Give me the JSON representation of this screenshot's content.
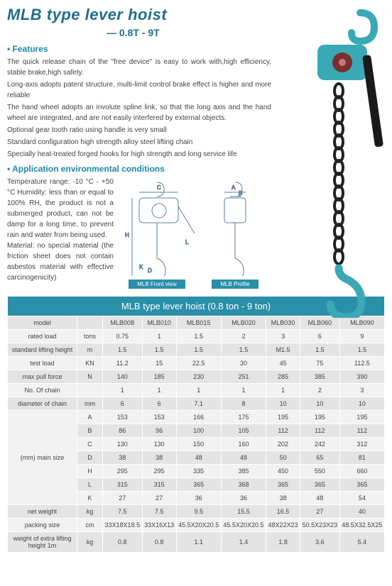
{
  "header": {
    "title": "MLB type lever hoist",
    "subtitle": "— 0.8T - 9T"
  },
  "features": {
    "heading": "• Features",
    "items": [
      "The quick release chain of the \"free device\" is easy to work with,high efficiency, stable brake,high safety.",
      "Long-axis adopts patent structure, multi-limit control brake effect is higher and more reliable",
      "The hand wheel adopts an involute spline link, so that the long axis and the hand wheel are integrated, and are not easily interfered by external objects.",
      "Optional gear tooth ratio using handle is very small",
      "Standard configuration high strength alloy steel lifting chain",
      "Specially heat-treated forged hooks for high strength and long service life"
    ]
  },
  "application": {
    "heading": "• Application environmental conditions",
    "text": "Temperature range: -10 °C - +50 °C Humidity: less than or equal to 100% RH, the product is not a submerged product, can not be damp for a long time, to prevent rain and water from being used.\nMaterial: no special material (the friction sheet does not contain asbestos material with effective carcinogenicity)"
  },
  "diagrams": {
    "front_caption": "MLB Front view",
    "profile_caption": "MLB Profile"
  },
  "hero": {
    "body_color": "#3aa9b5",
    "chain_color": "#222222",
    "handle_color": "#1a1a1a"
  },
  "table": {
    "title": "MLB type lever hoist (0.8 ton - 9 ton)",
    "header_bg": "#2a8fa8",
    "row_alt_bg": "#e4e4e4",
    "row_bg": "#f2f2f2",
    "columns": [
      "model",
      "",
      "MLB008",
      "MLB010",
      "MLB015",
      "MLB020",
      "MLB030",
      "MLB060",
      "MLB090"
    ],
    "rows": [
      {
        "label": "rated load",
        "unit": "tons",
        "vals": [
          "0.75",
          "1",
          "1.5",
          "2",
          "3",
          "6",
          "9"
        ]
      },
      {
        "label": "standard lifting height",
        "unit": "m",
        "vals": [
          "1.5",
          "1.5",
          "1.5",
          "1.5",
          "M1.5",
          "1.5",
          "1.5"
        ]
      },
      {
        "label": "test load",
        "unit": "KN",
        "vals": [
          "11.2",
          "15",
          "22.5",
          "30",
          "45",
          "75",
          "112.5"
        ]
      },
      {
        "label": "max pull force",
        "unit": "N",
        "vals": [
          "140",
          "185",
          "230",
          "251",
          "285",
          "385",
          "390"
        ]
      },
      {
        "label": "No. Of chain",
        "unit": "",
        "vals": [
          "1",
          "1",
          "1",
          "1",
          "1",
          "2",
          "3"
        ]
      },
      {
        "label": "diameter of chain",
        "unit": "mm",
        "vals": [
          "6",
          "6",
          "7.1",
          "8",
          "10",
          "10",
          "10"
        ]
      }
    ],
    "mainsize": {
      "label": "(mm) main size",
      "rows": [
        {
          "k": "A",
          "vals": [
            "153",
            "153",
            "166",
            "175",
            "195",
            "195",
            "195"
          ]
        },
        {
          "k": "B",
          "vals": [
            "86",
            "96",
            "100",
            "105",
            "112",
            "112",
            "112"
          ]
        },
        {
          "k": "C",
          "vals": [
            "130",
            "130",
            "150",
            "160",
            "202",
            "242",
            "312"
          ]
        },
        {
          "k": "D",
          "vals": [
            "38",
            "38",
            "48",
            "48",
            "50",
            "65",
            "81"
          ]
        },
        {
          "k": "H",
          "vals": [
            "295",
            "295",
            "335",
            "385",
            "450",
            "550",
            "660"
          ]
        },
        {
          "k": "L",
          "vals": [
            "315",
            "315",
            "365",
            "368",
            "365",
            "365",
            "365"
          ]
        },
        {
          "k": "K",
          "vals": [
            "27",
            "27",
            "36",
            "36",
            "38",
            "48",
            "54"
          ]
        }
      ]
    },
    "tail": [
      {
        "label": "net weight",
        "unit": "kg",
        "vals": [
          "7.5",
          "7.5",
          "9.5",
          "15.5",
          "16.5",
          "27",
          "40"
        ]
      },
      {
        "label": "packing size",
        "unit": "cm",
        "vals": [
          "33X18X18.5",
          "33X16X13",
          "45.5X20X20.5",
          "45.5X20X20.5",
          "48X22X23",
          "50.5X23X23",
          "48.5X32.5X25"
        ]
      },
      {
        "label": "weight of extra lifting height 1m",
        "unit": "kg",
        "vals": [
          "0.8",
          "0.8",
          "1.1",
          "1.4",
          "1.8",
          "3.6",
          "5.4"
        ]
      }
    ]
  }
}
